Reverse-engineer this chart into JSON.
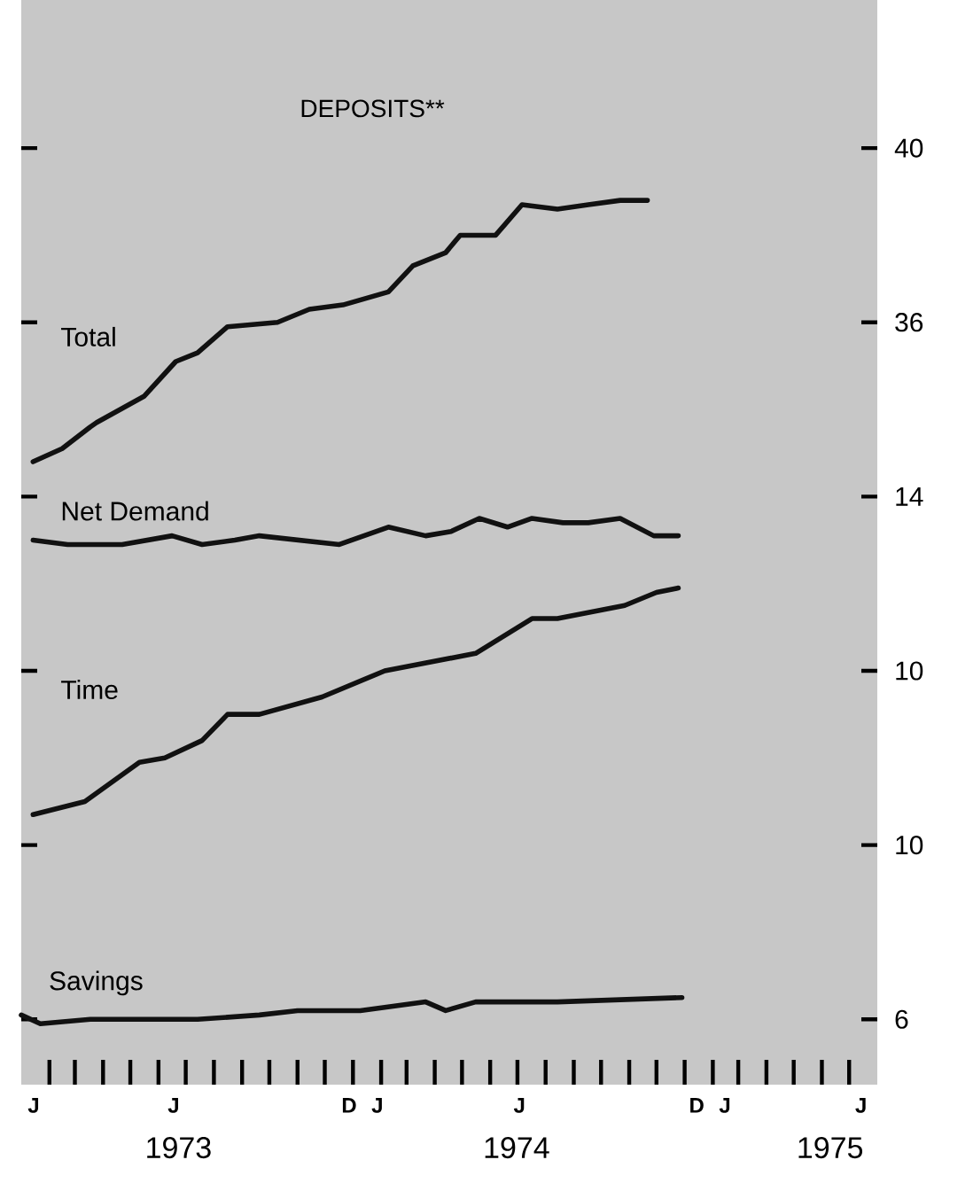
{
  "chart_data": {
    "type": "line",
    "title": "DEPOSITS**",
    "xlim": [
      "1973-01-01",
      "1975-08-01"
    ],
    "annotations": [
      "J",
      "J",
      "D",
      "J",
      "J",
      "D",
      "J",
      "J"
    ],
    "xticks": [
      {
        "value": "1973-06-23",
        "label": "1973"
      },
      {
        "value": "1974-06-30",
        "label": "1974"
      },
      {
        "value": "1975-06-10",
        "label": "1975"
      },
      {
        "value": "1973-02-01",
        "label": null
      },
      {
        "value": "1973-03-01",
        "label": null
      },
      {
        "value": "1973-04-01",
        "label": null
      },
      {
        "value": "1973-05-01",
        "label": null
      },
      {
        "value": "1973-06-01",
        "label": null
      },
      {
        "value": "1973-07-01",
        "label": null
      },
      {
        "value": "1973-08-01",
        "label": null
      },
      {
        "value": "1973-09-01",
        "label": null
      },
      {
        "value": "1973-10-01",
        "label": null
      },
      {
        "value": "1973-11-01",
        "label": null
      },
      {
        "value": "1973-12-01",
        "label": null
      },
      {
        "value": "1974-01-01",
        "label": null
      },
      {
        "value": "1974-02-01",
        "label": null
      },
      {
        "value": "1974-03-01",
        "label": null
      },
      {
        "value": "1974-04-01",
        "label": null
      },
      {
        "value": "1974-05-01",
        "label": null
      },
      {
        "value": "1974-06-01",
        "label": null
      },
      {
        "value": "1974-07-01",
        "label": null
      },
      {
        "value": "1974-08-01",
        "label": null
      },
      {
        "value": "1974-09-01",
        "label": null
      },
      {
        "value": "1974-10-01",
        "label": null
      },
      {
        "value": "1974-11-01",
        "label": null
      },
      {
        "value": "1974-12-01",
        "label": null
      },
      {
        "value": "1975-01-01",
        "label": null
      },
      {
        "value": "1975-02-01",
        "label": null
      },
      {
        "value": "1975-03-01",
        "label": null
      },
      {
        "value": "1975-04-01",
        "label": null
      },
      {
        "value": "1975-05-01",
        "label": null
      },
      {
        "value": "1975-06-01",
        "label": null
      },
      {
        "value": "1975-07-01",
        "label": null
      }
    ],
    "ylim": [
      18.5,
      43.4
    ],
    "yticks": [
      36,
      40
    ],
    "y2lim": [
      0.5,
      25.4
    ],
    "y2ticks": [
      10,
      14
    ],
    "y3lim": [
      4.5,
      29.4
    ],
    "y3ticks": [
      6,
      10
    ],
    "series": [
      {
        "name": "Total",
        "color": "#111111",
        "x": [
          "1973-01-14",
          "1973-02-15",
          "1973-03-18",
          "1973-03-25",
          "1973-05-16",
          "1973-06-20",
          "1973-07-14",
          "1973-08-16",
          "1973-10-10",
          "1973-11-14",
          "1973-12-21",
          "1974-02-09",
          "1974-03-08",
          "1974-04-13",
          "1974-04-29",
          "1974-06-07",
          "1974-07-06",
          "1974-08-14",
          "1974-09-17",
          "1974-10-22",
          "1974-11-21"
        ],
        "values": [
          32.8,
          33.1,
          33.6,
          33.7,
          34.3,
          35.1,
          35.3,
          35.9,
          36.0,
          36.3,
          36.4,
          36.7,
          37.3,
          37.6,
          38.0,
          38.0,
          38.7,
          38.6,
          38.7,
          38.8,
          38.8
        ]
      },
      {
        "name": "Net Demand",
        "color": "#111111",
        "axis": "y2",
        "x": [
          "1973-01-14",
          "1973-02-21",
          "1973-04-22",
          "1973-06-16",
          "1973-07-19",
          "1973-08-24",
          "1973-09-20",
          "1973-12-17",
          "1974-02-09",
          "1974-03-22",
          "1974-04-19",
          "1974-05-20",
          "1974-06-20",
          "1974-07-17",
          "1974-08-20",
          "1974-09-17",
          "1974-10-22",
          "1974-11-28",
          "1974-12-25"
        ],
        "values": [
          13.0,
          12.9,
          12.9,
          13.1,
          12.9,
          13.0,
          13.1,
          12.9,
          13.3,
          13.1,
          13.2,
          13.5,
          13.3,
          13.5,
          13.4,
          13.4,
          13.5,
          13.1,
          13.1
        ]
      },
      {
        "name": "Time",
        "color": "#111111",
        "axis": "y2",
        "x": [
          "1973-01-14",
          "1973-03-12",
          "1973-05-11",
          "1973-06-08",
          "1973-07-19",
          "1973-08-16",
          "1973-09-20",
          "1973-11-28",
          "1974-02-05",
          "1974-05-16",
          "1974-07-17",
          "1974-08-14",
          "1974-10-27",
          "1974-12-01",
          "1974-12-25"
        ],
        "values": [
          6.7,
          7.0,
          7.9,
          8.0,
          8.4,
          9.0,
          9.0,
          9.4,
          10.0,
          10.4,
          11.2,
          11.2,
          11.5,
          11.8,
          11.9
        ]
      },
      {
        "name": "Savings",
        "color": "#111111",
        "axis": "y3",
        "x": [
          "1973-01-01",
          "1973-01-22",
          "1973-03-18",
          "1973-07-14",
          "1973-09-20",
          "1973-11-01",
          "1974-01-09",
          "1974-03-22",
          "1974-04-13",
          "1974-05-16",
          "1974-08-14",
          "1974-12-29"
        ],
        "values": [
          6.1,
          5.9,
          6.0,
          6.0,
          6.1,
          6.2,
          6.2,
          6.4,
          6.2,
          6.4,
          6.4,
          6.5
        ]
      }
    ]
  }
}
